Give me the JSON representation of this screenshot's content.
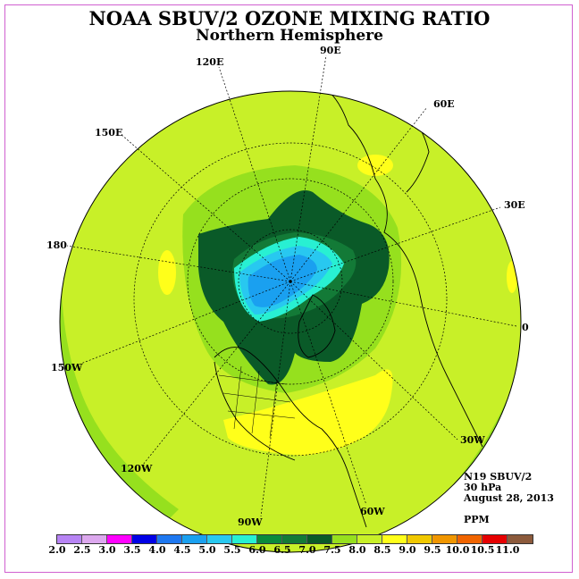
{
  "title": "NOAA SBUV/2 OZONE MIXING RATIO",
  "subtitle": "Northern Hemisphere",
  "longitude_labels": {
    "lon_90e": "90E",
    "lon_60e": "60E",
    "lon_30e": "30E",
    "lon_0": "0",
    "lon_30w": "30W",
    "lon_60w": "60W",
    "lon_90w": "90W",
    "lon_120w": "120W",
    "lon_150w": "150W",
    "lon_180": "180",
    "lon_150e": "150E",
    "lon_120e": "120E"
  },
  "info": {
    "instrument": "N19 SBUV/2",
    "level": "30 hPa",
    "date": "August 28, 2013",
    "units": "PPM"
  },
  "colorbar": {
    "ticks": [
      "2.0",
      "2.5",
      "3.0",
      "3.5",
      "4.0",
      "4.5",
      "5.0",
      "5.5",
      "6.0",
      "6.5",
      "7.0",
      "7.5",
      "8.0",
      "8.5",
      "9.0",
      "9.5",
      "10.0",
      "10.5",
      "11.0"
    ],
    "colors": [
      "#b784f4",
      "#dca8ee",
      "#ff00ff",
      "#0000e6",
      "#1e78f0",
      "#1aa0f0",
      "#28c8f0",
      "#28f0d2",
      "#0a8a3c",
      "#137a37",
      "#0a5a28",
      "#96e01e",
      "#c8f028",
      "#ffff1a",
      "#f0c800",
      "#f09600",
      "#f06400",
      "#e60000",
      "#8c5a3c"
    ]
  },
  "map_data": {
    "projection": "north polar stereographic",
    "field": "ozone mixing ratio",
    "units": "PPM",
    "range_ppm": [
      2.0,
      11.0
    ],
    "features": {
      "pole_minimum_ppm": 4.5,
      "polar_ring_ppm": [
        6.5,
        7.0
      ],
      "midlatitude_background_ppm": 8.0,
      "subtropical_maximum_ppm": 8.5,
      "outer_band_ppm": 7.5,
      "pacific_edge_ppm": 7.0
    },
    "graticule": {
      "meridians": [
        "0",
        "30E",
        "60E",
        "90E",
        "120E",
        "150E",
        "180",
        "150W",
        "120W",
        "90W",
        "60W",
        "30W"
      ],
      "latitude_circles": true
    }
  }
}
